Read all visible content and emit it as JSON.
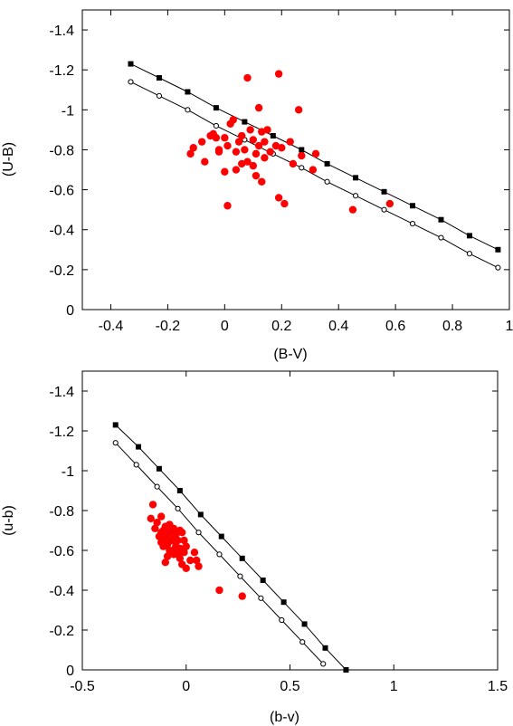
{
  "chart_data": [
    {
      "type": "scatter",
      "xlabel": "(B-V)",
      "ylabel": "(U-B)",
      "xlim": [
        -0.5,
        1.0
      ],
      "ylim": [
        0,
        -1.5
      ],
      "xticks": [
        -0.4,
        -0.2,
        0,
        0.2,
        0.4,
        0.6,
        0.8,
        1
      ],
      "xtick_labels": [
        "-0.4",
        "-0.2",
        "0",
        "0.2",
        "0.4",
        "0.6",
        "0.8",
        "1"
      ],
      "yticks": [
        0,
        -0.2,
        -0.4,
        -0.6,
        -0.8,
        -1,
        -1.2,
        -1.4
      ],
      "ytick_labels": [
        "0",
        "-0.2",
        "-0.4",
        "-0.6",
        "-0.8",
        "-1",
        "-1.2",
        "-1.4"
      ],
      "grid": false,
      "series": [
        {
          "marker": "filled-square",
          "color": "#000000",
          "x": [
            -0.33,
            -0.23,
            -0.13,
            -0.03,
            0.07,
            0.17,
            0.27,
            0.36,
            0.46,
            0.56,
            0.66,
            0.76,
            0.86,
            0.96
          ],
          "y": [
            -1.23,
            -1.16,
            -1.09,
            -1.01,
            -0.94,
            -0.87,
            -0.8,
            -0.73,
            -0.66,
            -0.59,
            -0.52,
            -0.45,
            -0.37,
            -0.3
          ]
        },
        {
          "marker": "open-circle",
          "color": "#000000",
          "x": [
            -0.33,
            -0.23,
            -0.13,
            -0.03,
            0.07,
            0.17,
            0.27,
            0.36,
            0.46,
            0.56,
            0.66,
            0.76,
            0.86,
            0.96
          ],
          "y": [
            -1.14,
            -1.07,
            -1.0,
            -0.92,
            -0.85,
            -0.78,
            -0.71,
            -0.64,
            -0.57,
            -0.5,
            -0.43,
            -0.36,
            -0.28,
            -0.21
          ]
        },
        {
          "marker": "filled-circle",
          "color": "#ff0000",
          "x": [
            0.08,
            0.19,
            0.12,
            0.26,
            -0.04,
            0.02,
            0.03,
            0.09,
            0.1,
            0.13,
            0.15,
            0.18,
            0.23,
            -0.12,
            -0.11,
            -0.03,
            0.01,
            0.04,
            0.05,
            0.06,
            0.07,
            0.11,
            0.14,
            0.2,
            0.27,
            -0.08,
            -0.05,
            -0.02,
            0.0,
            0.08,
            0.1,
            0.12,
            0.14,
            0.16,
            0.24,
            0.31,
            0.32,
            -0.07,
            0.04,
            0.06,
            0.11,
            0.0,
            0.13,
            0.19,
            0.21,
            0.45,
            0.58,
            -0.02,
            0.01
          ],
          "y": [
            -1.16,
            -1.18,
            -1.01,
            -1.0,
            -0.88,
            -0.93,
            -0.95,
            -0.9,
            -0.85,
            -0.89,
            -0.9,
            -0.82,
            -0.84,
            -0.78,
            -0.81,
            -0.86,
            -0.82,
            -0.79,
            -0.84,
            -0.87,
            -0.8,
            -0.78,
            -0.84,
            -0.81,
            -0.77,
            -0.84,
            -0.87,
            -0.79,
            -0.86,
            -0.74,
            -0.72,
            -0.82,
            -0.76,
            -0.79,
            -0.73,
            -0.7,
            -0.78,
            -0.74,
            -0.7,
            -0.73,
            -0.67,
            -0.69,
            -0.64,
            -0.56,
            -0.53,
            -0.5,
            -0.53,
            -0.8,
            -0.52
          ]
        }
      ]
    },
    {
      "type": "scatter",
      "xlabel": "(b-v)",
      "ylabel": "(u-b)",
      "xlim": [
        -0.5,
        1.5
      ],
      "ylim": [
        0,
        -1.5
      ],
      "xticks": [
        -0.5,
        0,
        0.5,
        1,
        1.5
      ],
      "xtick_labels": [
        "-0.5",
        "0",
        "0.5",
        "1",
        "1.5"
      ],
      "yticks": [
        0,
        -0.2,
        -0.4,
        -0.6,
        -0.8,
        -1,
        -1.2,
        -1.4
      ],
      "ytick_labels": [
        "0",
        "-0.2",
        "-0.4",
        "-0.6",
        "-0.8",
        "-1",
        "-1.2",
        "-1.4"
      ],
      "grid": false,
      "series": [
        {
          "marker": "filled-square",
          "color": "#000000",
          "x": [
            -0.34,
            -0.23,
            -0.13,
            -0.03,
            0.07,
            0.17,
            0.27,
            0.37,
            0.47,
            0.57,
            0.67,
            0.77
          ],
          "y": [
            -1.23,
            -1.12,
            -1.01,
            -0.9,
            -0.78,
            -0.67,
            -0.56,
            -0.45,
            -0.34,
            -0.23,
            -0.11,
            0.0
          ]
        },
        {
          "marker": "open-circle",
          "color": "#000000",
          "x": [
            -0.34,
            -0.24,
            -0.14,
            -0.04,
            0.06,
            0.16,
            0.26,
            0.36,
            0.46,
            0.56,
            0.66
          ],
          "y": [
            -1.14,
            -1.03,
            -0.92,
            -0.81,
            -0.69,
            -0.58,
            -0.47,
            -0.36,
            -0.25,
            -0.14,
            -0.03
          ]
        },
        {
          "marker": "filled-circle",
          "color": "#ff0000",
          "x": [
            -0.16,
            -0.17,
            -0.12,
            -0.1,
            -0.14,
            -0.11,
            -0.08,
            -0.06,
            -0.03,
            -0.15,
            -0.12,
            -0.09,
            -0.07,
            -0.05,
            -0.02,
            -0.13,
            -0.1,
            -0.08,
            -0.06,
            -0.04,
            -0.01,
            -0.12,
            -0.09,
            -0.07,
            -0.05,
            -0.03,
            0.0,
            -0.11,
            -0.08,
            -0.06,
            -0.04,
            -0.01,
            0.04,
            -0.09,
            -0.06,
            -0.03,
            0.02,
            -0.02,
            0.05,
            0.06,
            -0.1,
            0.0,
            0.16,
            0.27
          ],
          "y": [
            -0.83,
            -0.76,
            -0.77,
            -0.72,
            -0.74,
            -0.7,
            -0.73,
            -0.71,
            -0.7,
            -0.71,
            -0.69,
            -0.68,
            -0.7,
            -0.68,
            -0.69,
            -0.67,
            -0.66,
            -0.69,
            -0.66,
            -0.65,
            -0.65,
            -0.64,
            -0.63,
            -0.65,
            -0.62,
            -0.61,
            -0.62,
            -0.62,
            -0.6,
            -0.6,
            -0.58,
            -0.59,
            -0.59,
            -0.57,
            -0.58,
            -0.56,
            -0.55,
            -0.53,
            -0.55,
            -0.52,
            -0.54,
            -0.51,
            -0.4,
            -0.37
          ]
        }
      ]
    }
  ]
}
